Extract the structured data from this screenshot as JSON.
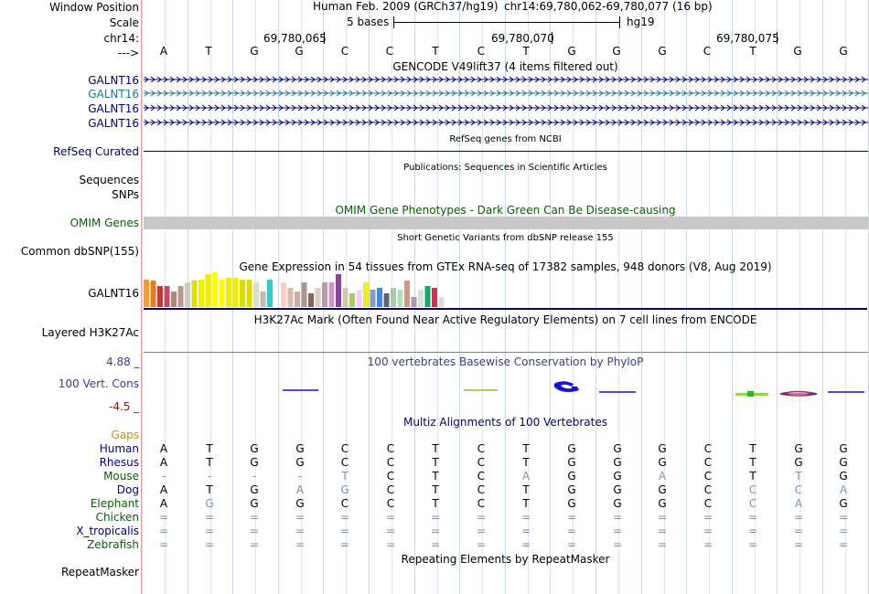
{
  "header": {
    "window_position_label": "Window Position",
    "scale_label": "Scale",
    "chrom_label": "chr14:",
    "arrow_label": "--->",
    "assembly": "Human Feb. 2009 (GRCh37/hg19)",
    "position": "chr14:69,780,062-69,780,077 (16 bp)",
    "scale_text": "5 bases",
    "scale_db": "hg19",
    "ticks": [
      "69,780,065",
      "69,780,070",
      "69,780,075"
    ]
  },
  "bases": [
    "A",
    "T",
    "G",
    "G",
    "C",
    "C",
    "T",
    "C",
    "T",
    "G",
    "G",
    "G",
    "C",
    "T",
    "G",
    "G"
  ],
  "tracks": {
    "gencode_title": "GENCODE V49lift37 (4 items filtered out)",
    "gencode_items": [
      "GALNT16",
      "GALNT16",
      "GALNT16",
      "GALNT16"
    ],
    "refseq_title": "RefSeq genes from NCBI",
    "refseq_label": "RefSeq Curated",
    "pubs_title": "Publications: Sequences in Scientific Articles",
    "sequences_label": "Sequences",
    "snps_label": "SNPs",
    "omim_title": "OMIM Gene Phenotypes - Dark Green Can Be Disease-causing",
    "omim_label": "OMIM Genes",
    "dbsnp_title": "Short Genetic Variants from dbSNP release 155",
    "dbsnp_label": "Common dbSNP(155)",
    "gtex_title": "Gene Expression in 54 tissues from GTEx RNA-seq of 17382 samples, 948 donors (V8, Aug 2019)",
    "gtex_label": "GALNT16",
    "h3k27_title": "H3K27Ac Mark (Often Found Near Active Regulatory Elements) on 7 cell lines from ENCODE",
    "h3k27_label": "Layered H3K27Ac",
    "phylop_title": "100 vertebrates Basewise Conservation by PhyloP",
    "phylop_label": "100 Vert. Cons",
    "phylop_max": "4.88 _",
    "phylop_min": "-4.5 _",
    "multiz_title": "Multiz Alignments of 100 Vertebrates",
    "gaps_label": "Gaps",
    "repeat_title": "Repeating Elements by RepeatMasker",
    "repeat_label": "RepeatMasker"
  },
  "gtex_colors": [
    "#ff9933",
    "#ee7722",
    "#cc3333",
    "#cc4466",
    "#aa8877",
    "#bb9988",
    "#cccccc",
    "#dddd00",
    "#eeee00",
    "#eeee00",
    "#ffff00",
    "#ffff00",
    "#eeee00",
    "#eeee00",
    "#dddd00",
    "#dddd00",
    "#ddddcc",
    "#bbbbbb",
    "#33cccc",
    "#ffffff",
    "#ffcccc",
    "#ddbbaa",
    "#ccaaaa",
    "#aa9988",
    "#886655",
    "#ddccbb",
    "#bb99aa",
    "#cc99cc",
    "#884499",
    "#ccccaa",
    "#aacc66",
    "#ffccff",
    "#eeee22",
    "#8899cc",
    "#4488dd",
    "#556677",
    "#aaccaa",
    "#bbddbb",
    "#cc9988",
    "#aa99bb",
    "#dddddd",
    "#11aa66",
    "#cc3355",
    "#dddddd"
  ],
  "gtex_values": [
    0.8,
    0.75,
    0.6,
    0.6,
    0.45,
    0.6,
    0.7,
    0.75,
    0.8,
    0.95,
    1.0,
    0.8,
    0.85,
    0.85,
    0.8,
    0.8,
    0.7,
    0.45,
    0.8,
    0,
    0.7,
    0.55,
    0.45,
    0.7,
    0.4,
    0.55,
    0.7,
    0.7,
    0.95,
    0.55,
    0.4,
    0.5,
    0.7,
    0.5,
    0.55,
    0.4,
    0.55,
    0.5,
    0.75,
    0.3,
    0.5,
    0.6,
    0.55,
    0.3
  ],
  "multiz": {
    "species": [
      "Human",
      "Rhesus",
      "Mouse",
      "Dog",
      "Elephant",
      "Chicken",
      "X_tropicalis",
      "Zebrafish"
    ],
    "rows": [
      [
        "A",
        "T",
        "G",
        "G",
        "C",
        "C",
        "T",
        "C",
        "T",
        "G",
        "G",
        "G",
        "C",
        "T",
        "G",
        "G"
      ],
      [
        "A",
        "T",
        "G",
        "G",
        "C",
        "C",
        "T",
        "C",
        "T",
        "G",
        "G",
        "G",
        "C",
        "T",
        "G",
        "G"
      ],
      [
        "-",
        "-",
        "-",
        "-",
        "T",
        "C",
        "T",
        "C",
        "A",
        "G",
        "G",
        "A",
        "C",
        "T",
        "T",
        "G"
      ],
      [
        "A",
        "T",
        "G",
        "A",
        "G",
        "C",
        "T",
        "C",
        "T",
        "G",
        "G",
        "G",
        "C",
        "C",
        "C",
        "A"
      ],
      [
        "A",
        "G",
        "G",
        "G",
        "C",
        "C",
        "T",
        "C",
        "T",
        "G",
        "G",
        "G",
        "C",
        "C",
        "A",
        "G"
      ],
      [
        "=",
        "=",
        "=",
        "=",
        "=",
        "=",
        "=",
        "=",
        "=",
        "=",
        "=",
        "=",
        "=",
        "=",
        "=",
        "="
      ],
      [
        "=",
        "=",
        "=",
        "=",
        "=",
        "=",
        "=",
        "=",
        "=",
        "=",
        "=",
        "=",
        "=",
        "=",
        "=",
        "="
      ],
      [
        "=",
        "=",
        "=",
        "=",
        "=",
        "=",
        "=",
        "=",
        "=",
        "=",
        "=",
        "=",
        "=",
        "=",
        "=",
        "="
      ]
    ],
    "dim": [
      [],
      [],
      [
        0,
        1,
        2,
        3,
        4,
        8,
        11,
        14
      ],
      [
        3,
        4,
        13,
        14,
        15
      ],
      [
        1,
        13,
        14
      ],
      [
        0,
        1,
        2,
        3,
        4,
        5,
        6,
        7,
        8,
        9,
        10,
        11,
        12,
        13,
        14,
        15
      ],
      [
        0,
        1,
        2,
        3,
        4,
        5,
        6,
        7,
        8,
        9,
        10,
        11,
        12,
        13,
        14,
        15
      ],
      [
        0,
        1,
        2,
        3,
        4,
        5,
        6,
        7,
        8,
        9,
        10,
        11,
        12,
        13,
        14,
        15
      ]
    ]
  },
  "colors": {
    "navy": "#000080",
    "gene_teal": "#1a7a8a",
    "omim_bar": "#c8c8c8",
    "conservation_blue": "#1414d2"
  }
}
